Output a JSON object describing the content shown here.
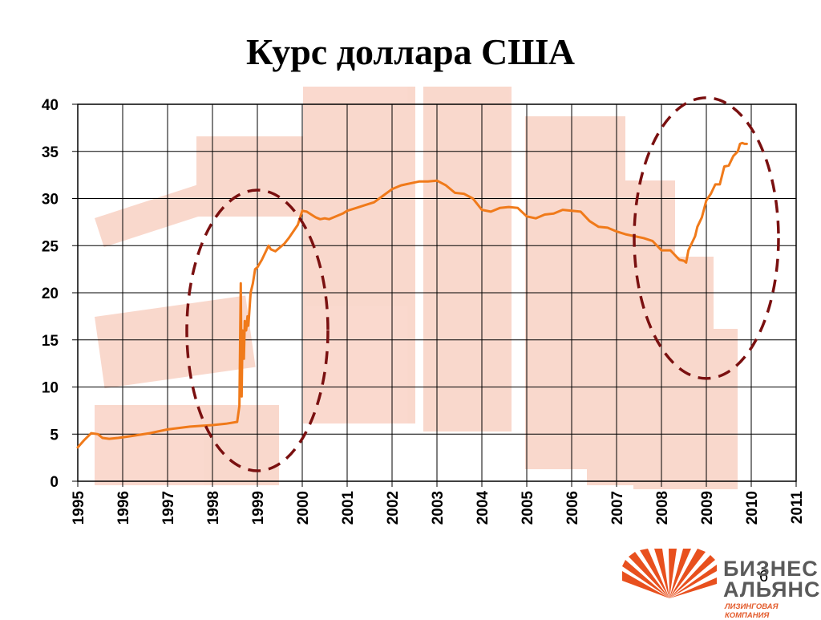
{
  "slide": {
    "title": "Курс доллара США",
    "page_number": "6"
  },
  "logo": {
    "line1": "БИЗНЕС",
    "line2": "АЛЬЯНС",
    "line3": "ЛИЗИНГОВАЯ КОМПАНИЯ",
    "colors": {
      "mark": "#e8501e",
      "text": "#5a5a5a"
    }
  },
  "chart_data": {
    "type": "line",
    "title": "",
    "xlabel": "",
    "ylabel": "",
    "xlim": [
      1995,
      2011
    ],
    "ylim": [
      0,
      40
    ],
    "x_ticks": [
      "1995",
      "1996",
      "1997",
      "1998",
      "1999",
      "2000",
      "2001",
      "2002",
      "2003",
      "2004",
      "2005",
      "2006",
      "2007",
      "2008",
      "2009",
      "2010",
      "2011"
    ],
    "y_ticks": [
      "0",
      "5",
      "10",
      "15",
      "20",
      "25",
      "30",
      "35",
      "40"
    ],
    "grid": true,
    "legend": "none",
    "line_color": "#f07a1a",
    "annotation_color": "#7a1010",
    "series": [
      {
        "x": [
          1995.0,
          1995.15,
          1995.3,
          1995.45,
          1995.55,
          1995.7,
          1995.9,
          1996.2,
          1996.6,
          1997.0,
          1997.5,
          1998.0,
          1998.3,
          1998.55,
          1998.6,
          1998.63,
          1998.65,
          1998.67,
          1998.7,
          1998.72,
          1998.75,
          1998.78,
          1998.8,
          1998.85,
          1998.9,
          1998.95,
          1999.0,
          1999.1,
          1999.2,
          1999.25,
          1999.3,
          1999.4,
          1999.5,
          1999.6,
          1999.7,
          1999.8,
          1999.9,
          2000.0,
          2000.1,
          2000.2,
          2000.3,
          2000.4,
          2000.5,
          2000.6,
          2000.75,
          2000.9,
          2001.0,
          2001.2,
          2001.4,
          2001.6,
          2001.8,
          2002.0,
          2002.2,
          2002.4,
          2002.6,
          2002.8,
          2003.0,
          2003.2,
          2003.4,
          2003.6,
          2003.8,
          2004.0,
          2004.2,
          2004.4,
          2004.6,
          2004.8,
          2005.0,
          2005.2,
          2005.4,
          2005.6,
          2005.8,
          2006.0,
          2006.2,
          2006.4,
          2006.6,
          2006.8,
          2007.0,
          2007.2,
          2007.4,
          2007.6,
          2007.8,
          2008.0,
          2008.2,
          2008.4,
          2008.5,
          2008.55,
          2008.6,
          2008.7,
          2008.75,
          2008.8,
          2008.9,
          2009.0,
          2009.1,
          2009.2,
          2009.3,
          2009.4,
          2009.5,
          2009.6,
          2009.7,
          2009.75,
          2009.8,
          2009.85,
          2009.9
        ],
        "y": [
          3.6,
          4.4,
          5.1,
          5.0,
          4.6,
          4.5,
          4.6,
          4.8,
          5.1,
          5.5,
          5.8,
          5.96,
          6.1,
          6.3,
          8.0,
          21.0,
          9.0,
          16.0,
          13.0,
          17.0,
          16.0,
          17.5,
          16.5,
          20.0,
          21.0,
          22.5,
          22.7,
          23.5,
          24.5,
          25.0,
          24.6,
          24.4,
          24.8,
          25.2,
          25.8,
          26.5,
          27.2,
          28.7,
          28.6,
          28.3,
          28.0,
          27.8,
          27.9,
          27.8,
          28.1,
          28.4,
          28.7,
          29.0,
          29.3,
          29.6,
          30.3,
          31.0,
          31.4,
          31.6,
          31.8,
          31.8,
          31.9,
          31.4,
          30.6,
          30.5,
          30.0,
          28.8,
          28.6,
          29.0,
          29.1,
          29.0,
          28.1,
          27.9,
          28.3,
          28.4,
          28.8,
          28.7,
          28.6,
          27.6,
          27.0,
          26.9,
          26.5,
          26.2,
          26.0,
          25.8,
          25.5,
          24.5,
          24.5,
          23.5,
          23.4,
          23.2,
          24.5,
          25.5,
          26.0,
          27.0,
          28.0,
          29.8,
          30.5,
          31.5,
          31.5,
          33.4,
          33.5,
          34.5,
          35.0,
          35.8,
          35.9,
          35.8,
          35.8
        ]
      }
    ]
  }
}
